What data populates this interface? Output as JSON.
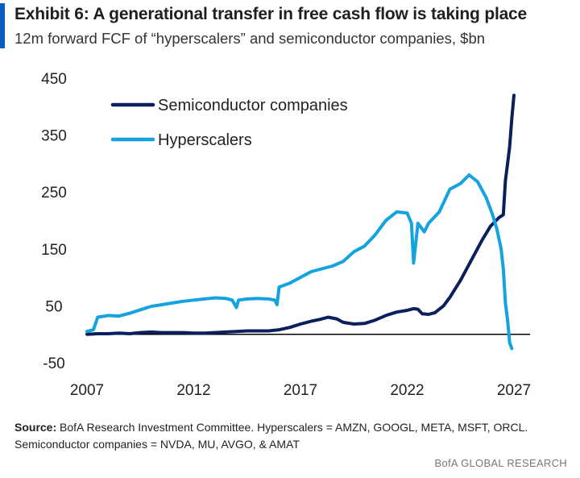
{
  "header": {
    "title": "Exhibit 6: A generational transfer in free cash flow is taking place",
    "subtitle": "12m forward FCF of “hyperscalers” and semiconductor companies, $bn"
  },
  "footer": {
    "source_label": "Source:",
    "source_text": "BofA Research Investment Committee. Hyperscalers = AMZN, GOOGL, META, MSFT, ORCL. Semiconductor companies = NVDA, MU, AVGO, & AMAT",
    "brand": "BofA GLOBAL RESEARCH"
  },
  "colors": {
    "accent": "#0a5cc2",
    "semis": "#0b1f5c",
    "hyperscalers": "#14a3e0",
    "zero_line": "#000000"
  },
  "chart_data": {
    "type": "line",
    "title": "Exhibit 6: A generational transfer in free cash flow is taking place",
    "subtitle": "12m forward FCF of “hyperscalers” and semiconductor companies, $bn",
    "xlabel": "",
    "ylabel": "",
    "xlim": [
      2007,
      2027
    ],
    "ylim": [
      -50,
      450
    ],
    "x_ticks": [
      2007,
      2012,
      2017,
      2022,
      2027
    ],
    "y_ticks": [
      -50,
      50,
      150,
      250,
      350,
      450
    ],
    "grid": false,
    "zero_line": true,
    "legend_position": "top-left",
    "series": [
      {
        "name": "Semiconductor companies",
        "color": "#0b1f5c",
        "points": [
          [
            2007.0,
            0
          ],
          [
            2007.5,
            1
          ],
          [
            2008.0,
            1
          ],
          [
            2008.5,
            2
          ],
          [
            2009.0,
            1
          ],
          [
            2009.5,
            3
          ],
          [
            2010.0,
            4
          ],
          [
            2010.5,
            3
          ],
          [
            2011.0,
            3
          ],
          [
            2011.5,
            3
          ],
          [
            2012.0,
            2
          ],
          [
            2012.5,
            2
          ],
          [
            2013.0,
            3
          ],
          [
            2013.5,
            4
          ],
          [
            2014.0,
            5
          ],
          [
            2014.5,
            6
          ],
          [
            2015.0,
            6
          ],
          [
            2015.5,
            6
          ],
          [
            2016.0,
            8
          ],
          [
            2016.5,
            12
          ],
          [
            2017.0,
            18
          ],
          [
            2017.5,
            23
          ],
          [
            2017.9,
            26
          ],
          [
            2018.3,
            30
          ],
          [
            2018.7,
            27
          ],
          [
            2019.0,
            21
          ],
          [
            2019.5,
            18
          ],
          [
            2020.0,
            19
          ],
          [
            2020.5,
            25
          ],
          [
            2021.0,
            33
          ],
          [
            2021.5,
            39
          ],
          [
            2022.0,
            42
          ],
          [
            2022.3,
            45
          ],
          [
            2022.5,
            44
          ],
          [
            2022.7,
            36
          ],
          [
            2023.0,
            35
          ],
          [
            2023.3,
            38
          ],
          [
            2023.7,
            50
          ],
          [
            2024.0,
            65
          ],
          [
            2024.5,
            95
          ],
          [
            2025.0,
            130
          ],
          [
            2025.5,
            165
          ],
          [
            2025.9,
            190
          ],
          [
            2026.3,
            205
          ],
          [
            2026.5,
            210
          ],
          [
            2026.6,
            270
          ],
          [
            2026.7,
            300
          ],
          [
            2026.8,
            330
          ],
          [
            2026.9,
            380
          ],
          [
            2027.0,
            420
          ]
        ]
      },
      {
        "name": "Hyperscalers",
        "color": "#14a3e0",
        "points": [
          [
            2007.0,
            5
          ],
          [
            2007.3,
            8
          ],
          [
            2007.5,
            30
          ],
          [
            2008.0,
            33
          ],
          [
            2008.5,
            32
          ],
          [
            2009.0,
            37
          ],
          [
            2009.5,
            43
          ],
          [
            2010.0,
            49
          ],
          [
            2010.5,
            52
          ],
          [
            2011.0,
            55
          ],
          [
            2011.5,
            58
          ],
          [
            2012.0,
            60
          ],
          [
            2012.5,
            62
          ],
          [
            2013.0,
            64
          ],
          [
            2013.5,
            63
          ],
          [
            2013.8,
            60
          ],
          [
            2014.0,
            47
          ],
          [
            2014.1,
            60
          ],
          [
            2014.5,
            62
          ],
          [
            2015.0,
            63
          ],
          [
            2015.5,
            62
          ],
          [
            2015.8,
            60
          ],
          [
            2015.9,
            52
          ],
          [
            2016.0,
            83
          ],
          [
            2016.5,
            90
          ],
          [
            2017.0,
            100
          ],
          [
            2017.5,
            110
          ],
          [
            2018.0,
            115
          ],
          [
            2018.5,
            120
          ],
          [
            2019.0,
            128
          ],
          [
            2019.5,
            145
          ],
          [
            2020.0,
            155
          ],
          [
            2020.5,
            175
          ],
          [
            2021.0,
            200
          ],
          [
            2021.5,
            215
          ],
          [
            2022.0,
            213
          ],
          [
            2022.2,
            195
          ],
          [
            2022.3,
            125
          ],
          [
            2022.5,
            195
          ],
          [
            2022.8,
            180
          ],
          [
            2023.0,
            195
          ],
          [
            2023.5,
            215
          ],
          [
            2024.0,
            255
          ],
          [
            2024.5,
            265
          ],
          [
            2024.9,
            280
          ],
          [
            2025.3,
            268
          ],
          [
            2025.7,
            240
          ],
          [
            2026.0,
            210
          ],
          [
            2026.2,
            185
          ],
          [
            2026.4,
            150
          ],
          [
            2026.5,
            115
          ],
          [
            2026.6,
            55
          ],
          [
            2026.7,
            25
          ],
          [
            2026.8,
            -15
          ],
          [
            2026.9,
            -25
          ]
        ]
      }
    ]
  }
}
